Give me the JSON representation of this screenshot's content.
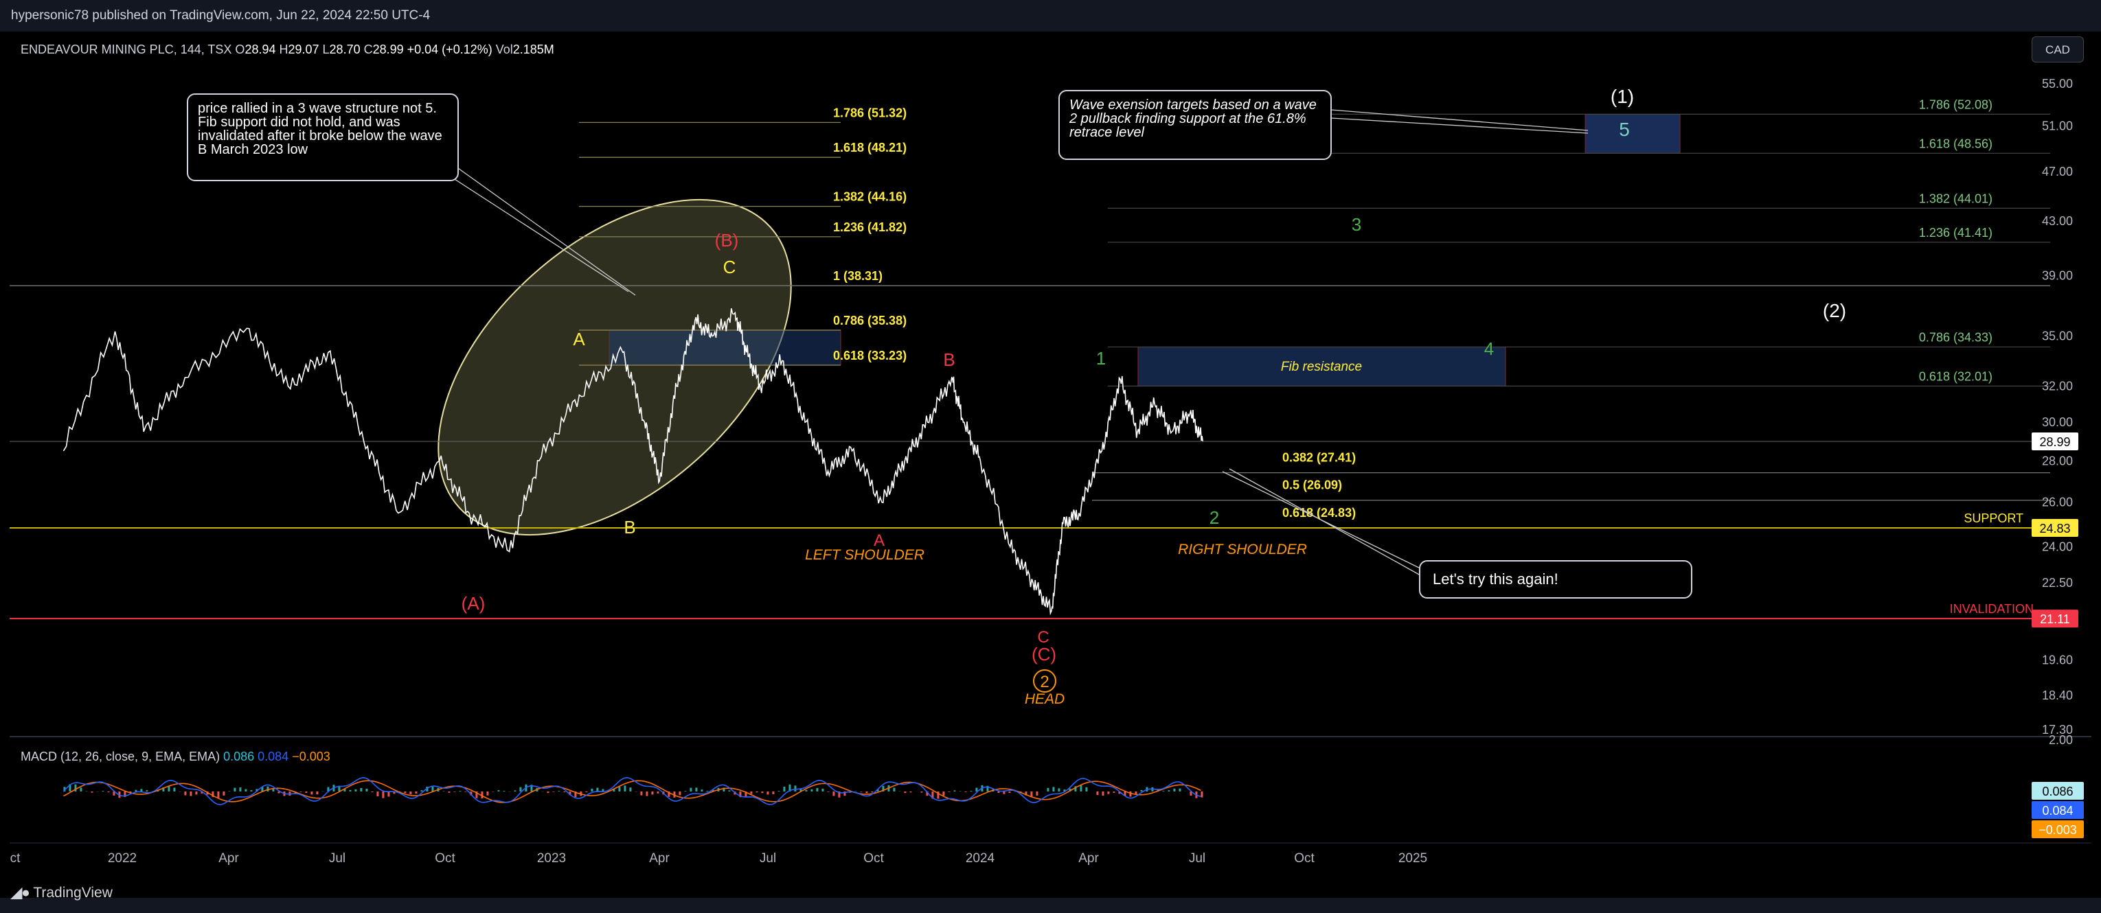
{
  "header": {
    "publisher": "hypersonic78 published on TradingView.com, Jun 22, 2024 22:50 UTC-4"
  },
  "brand": "TradingView",
  "currency_button": "CAD",
  "symbol": {
    "name": "ENDEAVOUR MINING PLC, 144, TSX",
    "o_label": "O",
    "o": "28.94",
    "h_label": "H",
    "h": "29.07",
    "l_label": "L",
    "l": "28.70",
    "c_label": "C",
    "c": "28.99",
    "change": "+0.04 (+0.12%)",
    "vol_label": "Vol",
    "vol": "2.185M"
  },
  "macd": {
    "label": "MACD (12, 26, close, 9, EMA, EMA)",
    "hist": "0.086",
    "macd": "0.084",
    "signal": "−0.003",
    "badges": [
      "0.086",
      "0.084",
      "−0.003"
    ],
    "axis_top": "2.00"
  },
  "colors": {
    "background": "#000000",
    "price": "#ffffff",
    "red": "#f23645",
    "yellow": "#ffeb3b",
    "green": "#4caf50",
    "orange": "#ff9800",
    "macd_line": "#2962ff",
    "signal_line": "#ff6d00",
    "hist_pos": "#26a69a",
    "hist_neg": "#ef5350",
    "box_blue": "#1e3a6e"
  },
  "annotations": {
    "callout_main": "price rallied in a 3 wave structure not 5.  Fib support did not hold, and was invalidated after it broke below the wave B March 2023 low",
    "callout_targets": "Wave exension targets based on a wave 2 pullback finding support at the 61.8% retrace level",
    "callout_again": "Let's try this again!",
    "fib_resistance": "Fib resistance",
    "support": "SUPPORT",
    "invalidation": "INVALIDATION",
    "left_shoulder": "LEFT SHOULDER",
    "right_shoulder": "RIGHT SHOULDER",
    "head": "HEAD"
  },
  "wave_labels": {
    "A_paren": "(A)",
    "B_paren": "(B)",
    "C_paren": "(C)",
    "A": "A",
    "B": "B",
    "C": "C",
    "one": "1",
    "two": "2",
    "three": "3",
    "four": "4",
    "five": "5",
    "one_paren": "(1)",
    "two_paren": "(2)",
    "circle_two": "2"
  },
  "chart_data": {
    "type": "line",
    "title": "ENDEAVOUR MINING PLC, 144, TSX",
    "xlabel": "",
    "ylabel": "",
    "x_ticks": [
      "ct",
      "2022",
      "Apr",
      "Jul",
      "Oct",
      "2023",
      "Apr",
      "Jul",
      "Oct",
      "2024",
      "Apr",
      "Jul",
      "Oct",
      "2025"
    ],
    "y_ticks": [
      "55.00",
      "51.00",
      "47.00",
      "43.00",
      "39.00",
      "35.00",
      "32.00",
      "30.00",
      "28.00",
      "26.00",
      "24.00",
      "22.50",
      "19.60",
      "18.40",
      "17.30"
    ],
    "y_scale": "log",
    "ylim": [
      16.8,
      58
    ],
    "price_badges": [
      {
        "value": "28.99",
        "style": "last"
      },
      {
        "value": "24.83",
        "style": "support"
      },
      {
        "value": "21.11",
        "style": "invalidation"
      }
    ],
    "series": [
      {
        "name": "price",
        "x": [
          "2021-10-01",
          "2021-11-15",
          "2021-12-10",
          "2022-01-15",
          "2022-03-10",
          "2022-04-15",
          "2022-05-20",
          "2022-06-20",
          "2022-07-20",
          "2022-08-25",
          "2022-09-20",
          "2022-10-25",
          "2022-11-20",
          "2022-12-25",
          "2023-02-01",
          "2023-02-20",
          "2023-03-05",
          "2023-03-20",
          "2023-04-05",
          "2023-04-20",
          "2023-05-10",
          "2023-05-20",
          "2023-06-01",
          "2023-06-20",
          "2023-07-10",
          "2023-07-30",
          "2023-08-20",
          "2023-09-15",
          "2023-10-05",
          "2023-10-25",
          "2023-11-15",
          "2023-11-25",
          "2023-12-10",
          "2024-01-05",
          "2024-01-25",
          "2024-02-10",
          "2024-02-20",
          "2024-03-05",
          "2024-03-25",
          "2024-04-10",
          "2024-04-25",
          "2024-05-10",
          "2024-05-25",
          "2024-06-10",
          "2024-06-21"
        ],
        "values": [
          28.5,
          35.3,
          29.5,
          32.5,
          35.5,
          32.0,
          34.0,
          29.0,
          25.5,
          28.0,
          25.5,
          23.8,
          28.0,
          31.5,
          34.0,
          30.0,
          27.0,
          32.0,
          36.0,
          35.0,
          36.5,
          34.0,
          32.0,
          33.5,
          30.0,
          27.5,
          28.5,
          26.0,
          28.0,
          30.0,
          32.5,
          30.0,
          28.0,
          24.0,
          22.5,
          21.4,
          25.0,
          25.5,
          28.5,
          32.4,
          29.5,
          31.0,
          29.5,
          30.5,
          29.0
        ]
      }
    ],
    "fib_levels_left": [
      {
        "ratio": "1.786",
        "value": 51.32,
        "label": "1.786 (51.32)"
      },
      {
        "ratio": "1.618",
        "value": 48.21,
        "label": "1.618 (48.21)"
      },
      {
        "ratio": "1.382",
        "value": 44.16,
        "label": "1.382 (44.16)"
      },
      {
        "ratio": "1.236",
        "value": 41.82,
        "label": "1.236 (41.82)"
      },
      {
        "ratio": "1",
        "value": 38.31,
        "label": "1 (38.31)"
      },
      {
        "ratio": "0.786",
        "value": 35.38,
        "label": "0.786 (35.38)"
      },
      {
        "ratio": "0.618",
        "value": 33.23,
        "label": "0.618 (33.23)"
      }
    ],
    "fib_levels_mid": [
      {
        "ratio": "0.382",
        "value": 27.41,
        "label": "0.382 (27.41)"
      },
      {
        "ratio": "0.5",
        "value": 26.09,
        "label": "0.5 (26.09)"
      },
      {
        "ratio": "0.618",
        "value": 24.83,
        "label": "0.618 (24.83)"
      }
    ],
    "fib_levels_right": [
      {
        "ratio": "1.786",
        "value": 52.08,
        "label": "1.786 (52.08)"
      },
      {
        "ratio": "1.618",
        "value": 48.56,
        "label": "1.618 (48.56)"
      },
      {
        "ratio": "1.382",
        "value": 44.01,
        "label": "1.382 (44.01)"
      },
      {
        "ratio": "1.236",
        "value": 41.41,
        "label": "1.236 (41.41)"
      },
      {
        "ratio": "0.786",
        "value": 34.33,
        "label": "0.786 (34.33)"
      },
      {
        "ratio": "0.618",
        "value": 32.01,
        "label": "0.618 (32.01)"
      }
    ],
    "horizontal_levels": {
      "last_price": 28.99,
      "support": 24.83,
      "invalidation": 21.11
    },
    "macd_series": {
      "x_range": [
        "2021-10-01",
        "2024-06-21"
      ],
      "ylim": [
        -2,
        2
      ]
    },
    "grid": false,
    "legend": "none"
  }
}
